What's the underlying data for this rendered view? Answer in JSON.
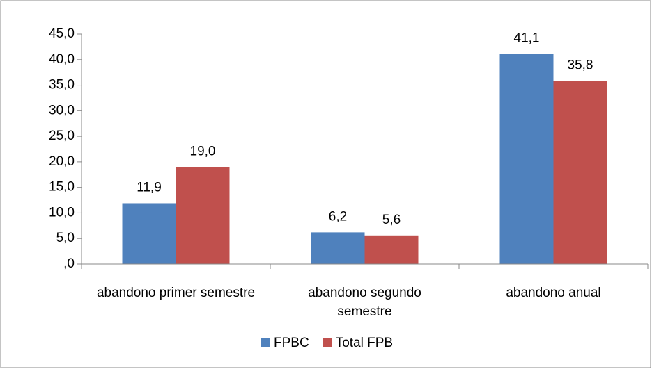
{
  "chart_data": {
    "type": "bar",
    "categories": [
      "abandono primer semestre",
      "abandono segundo semestre",
      "abandono anual"
    ],
    "series": [
      {
        "name": "FPBC",
        "color": "#4f81bd",
        "values": [
          11.9,
          6.2,
          41.1
        ],
        "value_labels": [
          "11,9",
          "6,2",
          "41,1"
        ]
      },
      {
        "name": "Total FPB",
        "color": "#c0504d",
        "values": [
          19.0,
          5.6,
          35.8
        ],
        "value_labels": [
          "19,0",
          "5,6",
          "35,8"
        ]
      }
    ],
    "ylim": [
      0,
      45
    ],
    "yticks": [
      {
        "value": 0,
        "label": ",0"
      },
      {
        "value": 5,
        "label": "5,0"
      },
      {
        "value": 10,
        "label": "10,0"
      },
      {
        "value": 15,
        "label": "15,0"
      },
      {
        "value": 20,
        "label": "20,0"
      },
      {
        "value": 25,
        "label": "25,0"
      },
      {
        "value": 30,
        "label": "30,0"
      },
      {
        "value": 35,
        "label": "35,0"
      },
      {
        "value": 40,
        "label": "40,0"
      },
      {
        "value": 45,
        "label": "45,0"
      }
    ],
    "grid": false,
    "legend": "bottom"
  }
}
